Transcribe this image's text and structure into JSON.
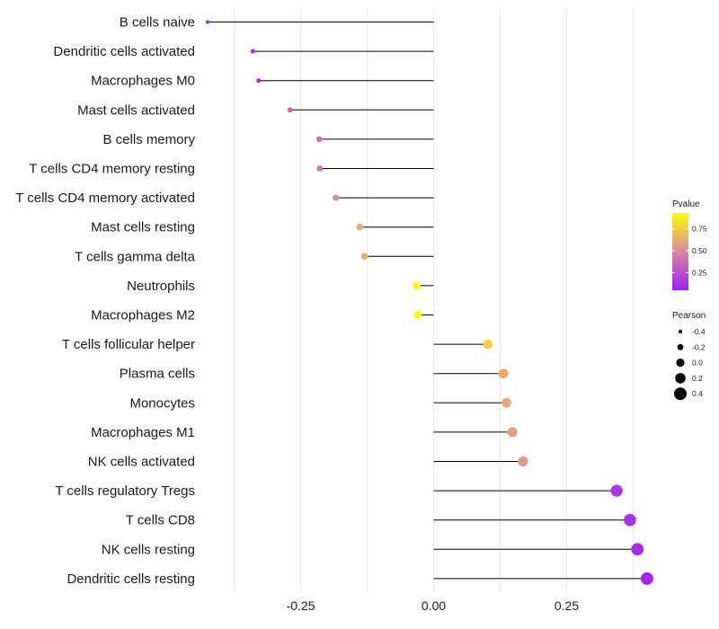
{
  "chart_data": {
    "type": "lollipop",
    "title": "",
    "xlabel": "",
    "ylabel": "",
    "xlim": [
      -0.43,
      0.435
    ],
    "xticks": [
      -0.25,
      0,
      0.25
    ],
    "xtick_labels": [
      "-0.25",
      "0.00",
      "0.25"
    ],
    "grid": true,
    "legend_placement": "right",
    "categories": [
      "B cells naive",
      "Dendritic cells activated",
      "Macrophages M0",
      "Mast cells activated",
      "B cells memory",
      "T cells CD4 memory resting",
      "T cells CD4 memory activated",
      "Mast cells resting",
      "T cells gamma delta",
      "Neutrophils",
      "Macrophages M2",
      "T cells follicular helper",
      "Plasma cells",
      "Monocytes",
      "Macrophages M1",
      "NK cells activated",
      "T cells regulatory  Tregs",
      "T cells CD8",
      "NK cells resting",
      "Dendritic cells resting"
    ],
    "pearson": [
      -0.425,
      -0.34,
      -0.329,
      -0.27,
      -0.215,
      -0.214,
      -0.184,
      -0.139,
      -0.13,
      -0.032,
      -0.03,
      0.102,
      0.131,
      0.137,
      0.148,
      0.168,
      0.344,
      0.369,
      0.383,
      0.401
    ],
    "pvalue": [
      0.05,
      0.1,
      0.13,
      0.35,
      0.4,
      0.42,
      0.5,
      0.62,
      0.64,
      0.9,
      0.92,
      0.75,
      0.62,
      0.62,
      0.58,
      0.55,
      0.15,
      0.12,
      0.1,
      0.08
    ],
    "color_legend": {
      "title": "Pvalue",
      "range": [
        0.05,
        0.93
      ],
      "breaks": [
        0.25,
        0.5,
        0.75
      ],
      "labels": [
        "0.25",
        "0.50",
        "0.75"
      ],
      "low_color": "#a020f0",
      "mid_color": "#d987a0",
      "high_color": "#ffff00"
    },
    "size_legend": {
      "title": "Pearson",
      "breaks": [
        -0.4,
        -0.2,
        0.0,
        0.2,
        0.4
      ],
      "labels": [
        "-0.4",
        "-0.2",
        "0.0",
        "0.2",
        "0.4"
      ]
    },
    "colors": {
      "stem": "#000000",
      "grid": "#ebebeb"
    }
  }
}
